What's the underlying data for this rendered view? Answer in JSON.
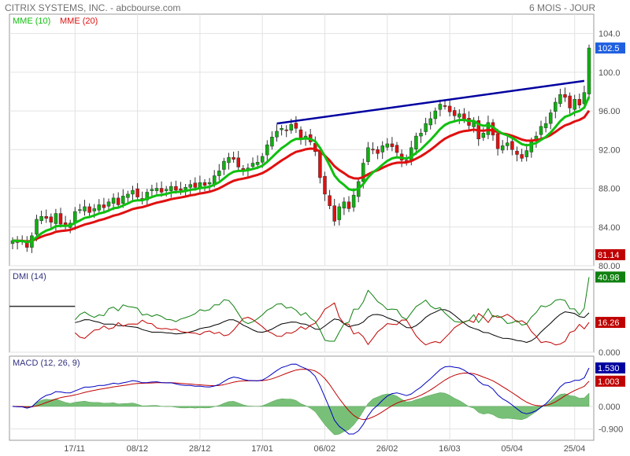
{
  "header": {
    "source": "CITRIX SYSTEMS, INC. - abcbourse.com",
    "period": "6 MOIS - JOUR"
  },
  "colors": {
    "up": "#10b010",
    "down": "#e01010",
    "mme10": "#10c010",
    "mme20": "#e01010",
    "trendline": "#0000a0",
    "dmi_plus": "#108010",
    "dmi_minus": "#c00000",
    "adx": "#000000",
    "macd": "#0000c0",
    "signal": "#c00000",
    "histogram": "#78c078",
    "last_price_badge": "#2060e0",
    "dmi_plus_badge": "#108010",
    "dmi_minus_badge": "#c00000",
    "macd_badge": "#0000a0",
    "signal_badge": "#c00000"
  },
  "chart_data": [
    {
      "type": "candlestick",
      "panel": "price",
      "legend": [
        "MME (10)",
        "MME (20)"
      ],
      "ylim": [
        80,
        106
      ],
      "yticks": [
        "104.0",
        "100.0",
        "96.00",
        "92.00",
        "88.00",
        "84.00",
        "80.00"
      ],
      "ytick_values": [
        104,
        100,
        96,
        92,
        88,
        84,
        80
      ],
      "last_price_label": "102.5",
      "last_price": 102.5,
      "low_marker_label": "81.14",
      "low_marker": 81.14,
      "xtick_labels": [
        "17/11",
        "08/12",
        "28/12",
        "17/01",
        "06/02",
        "26/02",
        "16/03",
        "05/04",
        "25/04"
      ],
      "xtick_index": [
        13,
        26,
        39,
        52,
        65,
        78,
        91,
        104,
        117
      ],
      "closes": [
        82.6,
        82.4,
        82.5,
        81.9,
        83.1,
        84.8,
        85.1,
        84.9,
        84.5,
        85.4,
        84.3,
        84.1,
        84.4,
        85.6,
        85.8,
        86.1,
        85.5,
        85.9,
        86.3,
        86.0,
        86.6,
        87.0,
        86.3,
        87.2,
        87.4,
        87.8,
        87.1,
        86.8,
        87.6,
        87.9,
        88.0,
        87.6,
        87.9,
        88.2,
        87.8,
        87.8,
        88.1,
        88.4,
        88.1,
        88.6,
        88.3,
        88.6,
        89.3,
        89.8,
        90.8,
        91.2,
        91.0,
        90.2,
        89.9,
        90.1,
        90.6,
        90.7,
        91.3,
        92.5,
        93.3,
        93.9,
        94.2,
        94.0,
        94.6,
        94.2,
        93.1,
        93.4,
        92.8,
        91.8,
        89.1,
        87.4,
        86.2,
        84.6,
        86.1,
        86.6,
        85.9,
        87.3,
        88.7,
        90.6,
        92.2,
        92.0,
        91.6,
        92.4,
        92.6,
        92.3,
        91.7,
        90.9,
        90.7,
        92.2,
        93.4,
        93.7,
        94.7,
        95.2,
        96.0,
        96.7,
        96.5,
        95.9,
        95.5,
        95.7,
        95.1,
        94.5,
        95.0,
        93.1,
        93.7,
        94.8,
        93.5,
        92.1,
        92.4,
        92.7,
        92.0,
        91.5,
        91.1,
        91.9,
        92.9,
        93.4,
        94.4,
        94.7,
        95.8,
        96.9,
        97.7,
        97.4,
        96.3,
        97.2,
        96.6,
        97.9,
        102.5
      ],
      "series": [
        {
          "name": "MME (10)"
        },
        {
          "name": "MME (20)"
        }
      ],
      "trendline": {
        "from_index": 55,
        "from_value": 94.7,
        "to_index": 119,
        "to_value": 99.1
      }
    },
    {
      "type": "line",
      "panel": "dmi",
      "title": "DMI (14)",
      "yticks": [
        "0.000"
      ],
      "ytick_values": [
        0
      ],
      "ylim": [
        0,
        45
      ],
      "badges": [
        {
          "label": "40.98",
          "value": 40.98,
          "key": "dmi_plus_badge"
        },
        {
          "label": "16.26",
          "value": 16.26,
          "key": "dmi_minus_badge"
        }
      ],
      "start_index": 13
    },
    {
      "type": "line",
      "panel": "macd",
      "title": "MACD (12, 26, 9)",
      "yticks": [
        "0.000",
        "-0.900"
      ],
      "ytick_values": [
        0,
        -0.9
      ],
      "ylim": [
        -1.35,
        2.0
      ],
      "badges": [
        {
          "label": "1.530",
          "value": 1.53,
          "key": "macd_badge"
        },
        {
          "label": "1.003",
          "value": 1.003,
          "key": "signal_badge"
        }
      ]
    }
  ]
}
